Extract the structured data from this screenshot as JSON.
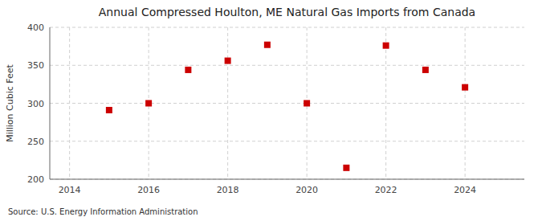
{
  "chart_data": {
    "type": "scatter",
    "title": "Annual Compressed Houlton, ME Natural Gas Imports from Canada",
    "y_label": "Million Cubic Feet",
    "annotations": [
      "Source: U.S. Energy Information Administration"
    ],
    "x": [
      2015,
      2016,
      2017,
      2018,
      2019,
      2020,
      2021,
      2022,
      2023,
      2024
    ],
    "values": [
      291,
      300,
      344,
      356,
      377,
      300,
      215,
      376,
      344,
      321
    ],
    "xlim": [
      2013.5,
      2025.5
    ],
    "ylim": [
      200,
      400
    ],
    "xticks": [
      2014,
      2016,
      2018,
      2020,
      2022,
      2024
    ],
    "yticks": [
      200,
      250,
      300,
      350,
      400
    ],
    "color": "#cc0000",
    "marker": "square",
    "grid": true
  }
}
